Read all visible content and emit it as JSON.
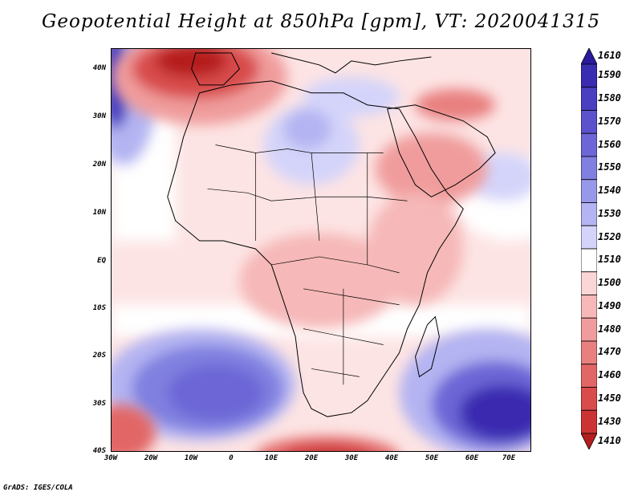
{
  "title": "Geopotential Height at 850hPa [gpm], VT: 2020041315",
  "credit": "GrADS: IGES/COLA",
  "lat_labels": [
    "40N",
    "30N",
    "20N",
    "10N",
    "EQ",
    "10S",
    "20S",
    "30S",
    "40S"
  ],
  "lon_labels": [
    "30W",
    "20W",
    "10W",
    "0",
    "10E",
    "20E",
    "30E",
    "40E",
    "50E",
    "60E",
    "70E"
  ],
  "colorbar": {
    "labels": [
      "1610",
      "1590",
      "1580",
      "1570",
      "1560",
      "1550",
      "1540",
      "1530",
      "1520",
      "1510",
      "1500",
      "1490",
      "1480",
      "1470",
      "1460",
      "1450",
      "1430",
      "1410"
    ],
    "colors": [
      "#2a1a9e",
      "#3a2cb0",
      "#4a3fc0",
      "#5b52cc",
      "#6c66d6",
      "#8080e0",
      "#9898ea",
      "#b4b4f2",
      "#d4d4fa",
      "#ffffff",
      "#fbd6d6",
      "#f6b8b8",
      "#f09c9c",
      "#e98080",
      "#e26666",
      "#d84c4c",
      "#cc3434",
      "#b51e1e"
    ]
  }
}
